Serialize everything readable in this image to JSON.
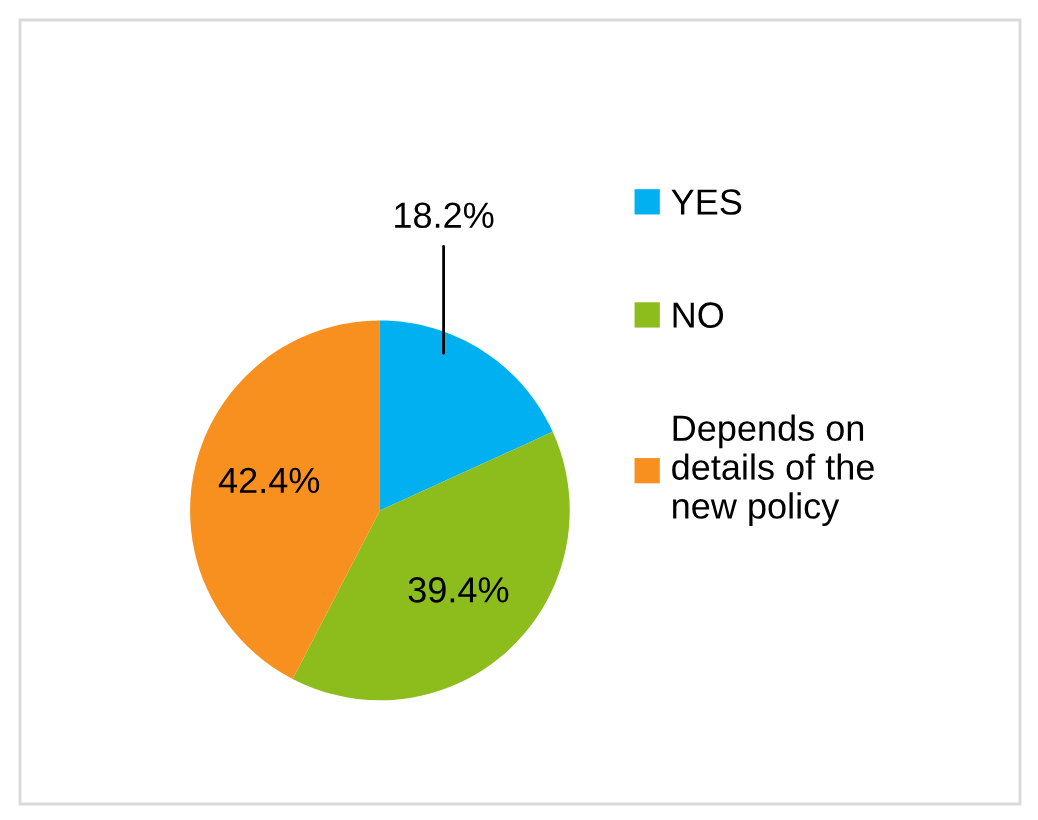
{
  "chart_data": {
    "type": "pie",
    "categories": [
      "YES",
      "NO",
      "Depends on\ndetails of the\nnew policy"
    ],
    "values": [
      18.2,
      39.4,
      42.4
    ],
    "colors": [
      "#00b0f0",
      "#8cbd1c",
      "#f7901e"
    ],
    "value_labels": [
      "18.2%",
      "39.4%",
      "42.4%"
    ],
    "legend": "right"
  }
}
